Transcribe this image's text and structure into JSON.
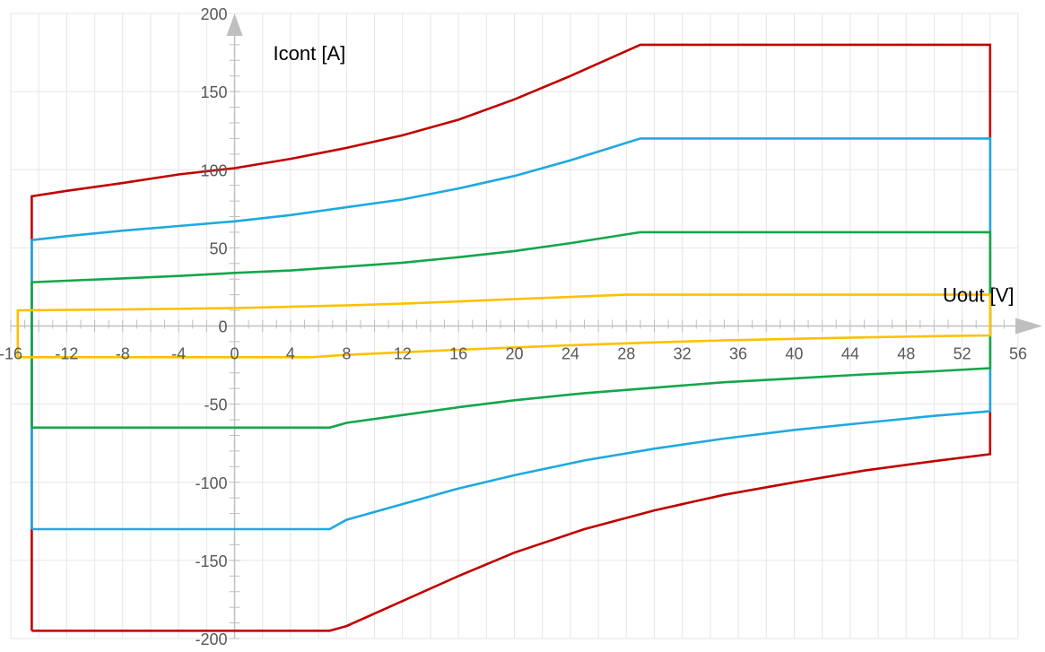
{
  "chart_data": {
    "type": "line",
    "title": "",
    "xlabel": "Uout [V]",
    "ylabel": "Icont [A]",
    "xlim": [
      -16,
      56
    ],
    "ylim": [
      -200,
      200
    ],
    "x_ticks": [
      -16,
      -12,
      -8,
      -4,
      0,
      4,
      8,
      12,
      16,
      20,
      24,
      28,
      32,
      36,
      40,
      44,
      48,
      52,
      56
    ],
    "y_ticks": [
      -200,
      -150,
      -100,
      -50,
      0,
      50,
      100,
      150,
      200
    ],
    "grid": true,
    "legend": "none",
    "series": [
      {
        "color": "#C00000",
        "points": [
          [
            -14.5,
            -195
          ],
          [
            -14.5,
            83
          ],
          [
            -12,
            86.5
          ],
          [
            -8,
            91.5
          ],
          [
            -4,
            97
          ],
          [
            0,
            101
          ],
          [
            4,
            107
          ],
          [
            8,
            114
          ],
          [
            12,
            122
          ],
          [
            16,
            132
          ],
          [
            20,
            145
          ],
          [
            24,
            160
          ],
          [
            29,
            180
          ],
          [
            54,
            180
          ],
          [
            54,
            -82
          ],
          [
            50,
            -86.5
          ],
          [
            45,
            -92.5
          ],
          [
            40,
            -100
          ],
          [
            35,
            -108
          ],
          [
            30,
            -118
          ],
          [
            25,
            -130
          ],
          [
            20,
            -145
          ],
          [
            16,
            -160
          ],
          [
            12,
            -176
          ],
          [
            8,
            -192
          ],
          [
            6.8,
            -195
          ],
          [
            -14.5,
            -195
          ]
        ]
      },
      {
        "color": "#1FA9E0",
        "points": [
          [
            -14.5,
            -130
          ],
          [
            -14.5,
            55
          ],
          [
            -12,
            57.5
          ],
          [
            -8,
            61
          ],
          [
            -4,
            64
          ],
          [
            0,
            67
          ],
          [
            4,
            71
          ],
          [
            8,
            76
          ],
          [
            12,
            81
          ],
          [
            16,
            88
          ],
          [
            20,
            96
          ],
          [
            24,
            106
          ],
          [
            29,
            120
          ],
          [
            54,
            120
          ],
          [
            54,
            -54.5
          ],
          [
            50,
            -57.5
          ],
          [
            45,
            -62
          ],
          [
            40,
            -66.5
          ],
          [
            35,
            -72
          ],
          [
            30,
            -78.5
          ],
          [
            25,
            -86
          ],
          [
            20,
            -95.5
          ],
          [
            16,
            -104
          ],
          [
            12,
            -114
          ],
          [
            8,
            -124
          ],
          [
            6.8,
            -130
          ],
          [
            -14.5,
            -130
          ]
        ]
      },
      {
        "color": "#14A64A",
        "points": [
          [
            -14.5,
            -65
          ],
          [
            -14.5,
            28
          ],
          [
            -12,
            29
          ],
          [
            -8,
            30.5
          ],
          [
            -4,
            32
          ],
          [
            0,
            34
          ],
          [
            4,
            35.5
          ],
          [
            8,
            38
          ],
          [
            12,
            40.5
          ],
          [
            16,
            44
          ],
          [
            20,
            48
          ],
          [
            24,
            53
          ],
          [
            29,
            60
          ],
          [
            54,
            60
          ],
          [
            54,
            -27
          ],
          [
            50,
            -29
          ],
          [
            45,
            -31
          ],
          [
            40,
            -33.5
          ],
          [
            35,
            -36
          ],
          [
            30,
            -39.5
          ],
          [
            25,
            -43
          ],
          [
            20,
            -47.5
          ],
          [
            16,
            -52
          ],
          [
            12,
            -57
          ],
          [
            8,
            -62
          ],
          [
            6.8,
            -65
          ],
          [
            -14.5,
            -65
          ]
        ]
      },
      {
        "color": "#FFC000",
        "points": [
          [
            -15.5,
            -20
          ],
          [
            -15.5,
            10
          ],
          [
            -12,
            10.3
          ],
          [
            -8,
            10.6
          ],
          [
            -4,
            11
          ],
          [
            0,
            11.5
          ],
          [
            4,
            12.3
          ],
          [
            8,
            13.2
          ],
          [
            12,
            14.3
          ],
          [
            16,
            15.7
          ],
          [
            20,
            17.2
          ],
          [
            24,
            18.6
          ],
          [
            28,
            20
          ],
          [
            54,
            20
          ],
          [
            54,
            -6
          ],
          [
            50,
            -6.5
          ],
          [
            45,
            -7.3
          ],
          [
            40,
            -8.2
          ],
          [
            35,
            -9.2
          ],
          [
            30,
            -10.5
          ],
          [
            25,
            -12
          ],
          [
            20,
            -13.7
          ],
          [
            16,
            -15.2
          ],
          [
            12,
            -16.8
          ],
          [
            8,
            -18.5
          ],
          [
            5.5,
            -20
          ],
          [
            -15.5,
            -20
          ]
        ]
      }
    ]
  }
}
